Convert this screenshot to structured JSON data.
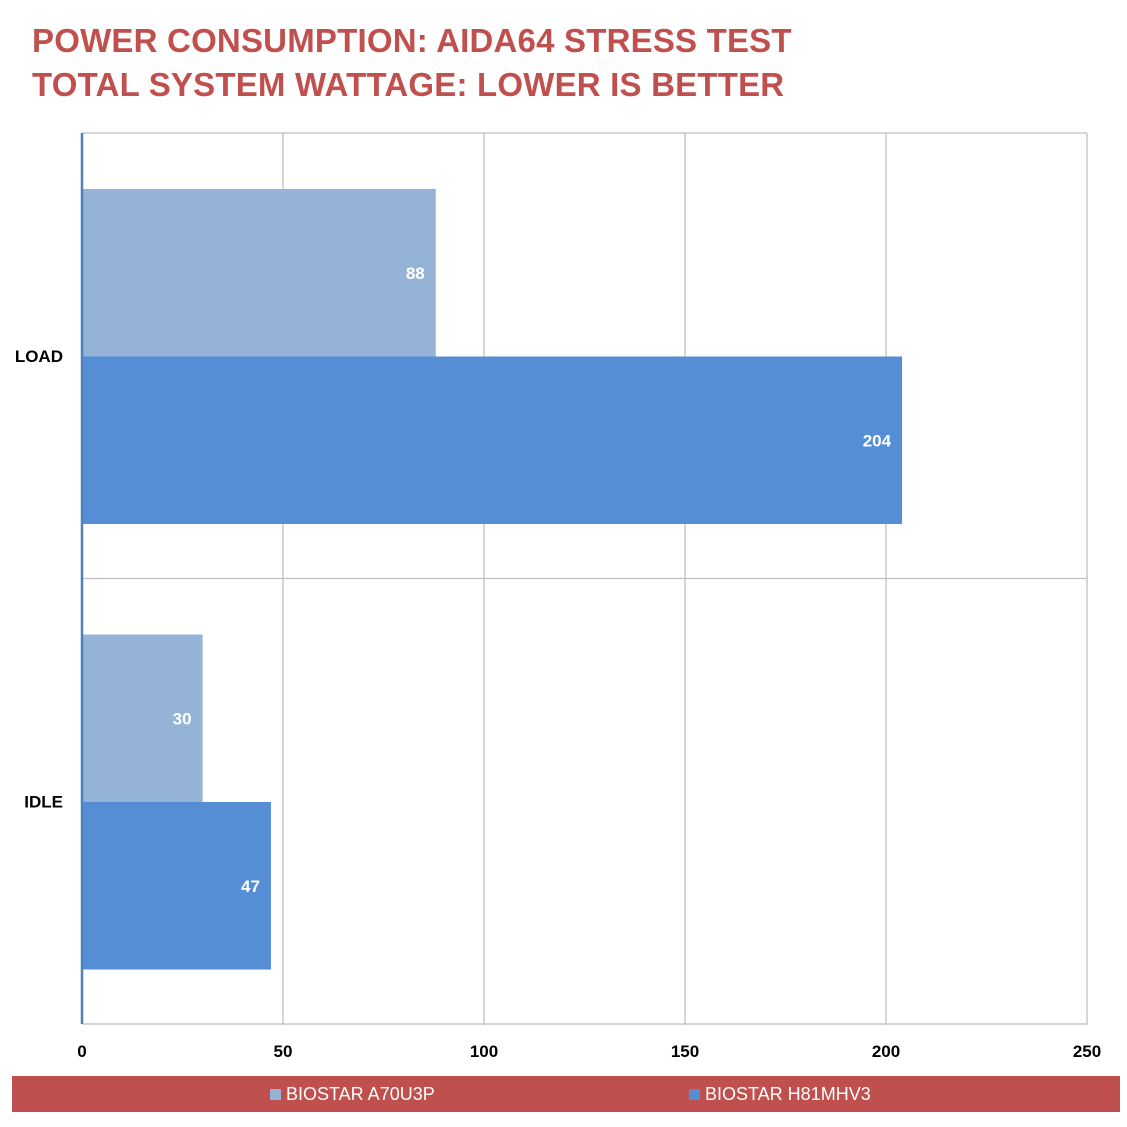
{
  "chart_data": {
    "type": "bar",
    "orientation": "horizontal",
    "title": "POWER CONSUMPTION: AIDA64 STRESS TEST",
    "subtitle": "TOTAL SYSTEM WATTAGE: LOWER IS BETTER",
    "categories": [
      "LOAD",
      "IDLE"
    ],
    "series": [
      {
        "name": "BIOSTAR A70U3P",
        "values": [
          88,
          30
        ],
        "color": "#95b3d7"
      },
      {
        "name": "BIOSTAR H81MHV3",
        "values": [
          204,
          47
        ],
        "color": "#558ed5"
      }
    ],
    "xlim": [
      0,
      250
    ],
    "xticks": [
      0,
      50,
      100,
      150,
      200,
      250
    ],
    "xlabel": "",
    "ylabel": "",
    "grid": true,
    "legend_position": "bottom",
    "data_labels": true
  },
  "colors": {
    "title": "#c0504d",
    "legend_background": "#c0504d",
    "legend_text": "#ffffff",
    "gridline": "#bfbfbf",
    "axis_line": "#4f81bd",
    "data_label": "#ffffff",
    "tick_label": "#000000"
  }
}
